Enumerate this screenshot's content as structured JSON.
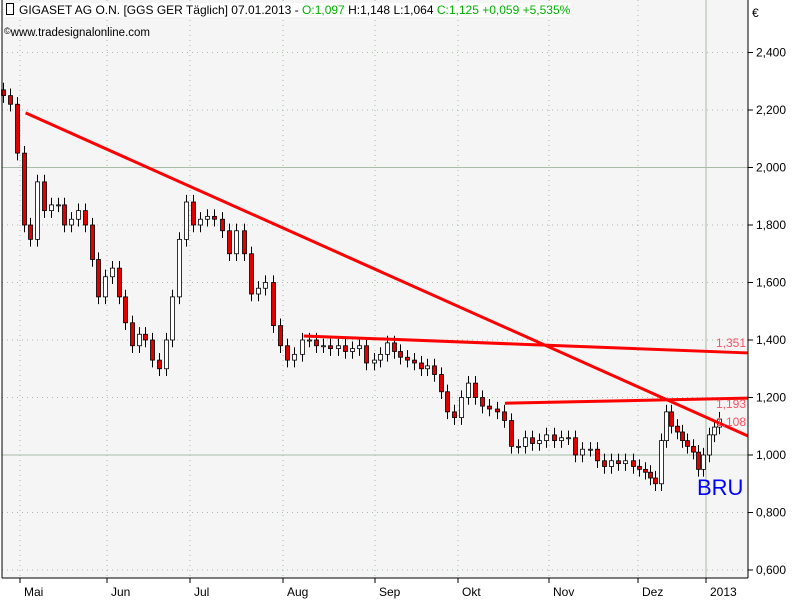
{
  "header": {
    "symbol": "GIGASET AG O.N. [GGS GER  Täglich] 07.01.2013 -",
    "open": "O:1,097",
    "high": "H:1,148",
    "low": "L:1,064",
    "close_change": "C:1,125 +0,059 +5,535%",
    "copyright": "©",
    "source": "www.tradesignalonline.com",
    "icon": "candlestick-icon"
  },
  "chart_data": {
    "type": "candlestick",
    "currency_label": "€",
    "ylim": [
      0.6,
      2.5
    ],
    "y_ticks": [
      "0,600",
      "0,800",
      "1,000",
      "1,200",
      "1,400",
      "1,600",
      "1,800",
      "2,000",
      "2,200",
      "2,400"
    ],
    "y_tick_values": [
      0.6,
      0.8,
      1.0,
      1.2,
      1.4,
      1.6,
      1.8,
      2.0,
      2.2,
      2.4
    ],
    "x_ticks": [
      {
        "label": "Mai",
        "date": "2012-05-01"
      },
      {
        "label": "Jun",
        "date": "2012-06-01"
      },
      {
        "label": "Jul",
        "date": "2012-07-01"
      },
      {
        "label": "Aug",
        "date": "2012-08-01"
      },
      {
        "label": "Sep",
        "date": "2012-09-01"
      },
      {
        "label": "Okt",
        "date": "2012-10-01"
      },
      {
        "label": "Nov",
        "date": "2012-11-01"
      },
      {
        "label": "Dez",
        "date": "2012-12-01"
      },
      {
        "label": "2013",
        "date": "2013-01-01"
      }
    ],
    "first_date": "2012-04-25",
    "last_date": "2013-01-07",
    "close": [
      2.25,
      2.22,
      2.05,
      1.8,
      1.75,
      1.95,
      1.85,
      1.87,
      1.87,
      1.8,
      1.82,
      1.85,
      1.8,
      1.68,
      1.55,
      1.62,
      1.65,
      1.55,
      1.46,
      1.38,
      1.42,
      1.4,
      1.33,
      1.3,
      1.4,
      1.55,
      1.75,
      1.88,
      1.8,
      1.82,
      1.83,
      1.82,
      1.78,
      1.7,
      1.78,
      1.7,
      1.56,
      1.58,
      1.6,
      1.45,
      1.38,
      1.33,
      1.35,
      1.4,
      1.4,
      1.38,
      1.38,
      1.37,
      1.38,
      1.36,
      1.37,
      1.38,
      1.32,
      1.33,
      1.35,
      1.39,
      1.36,
      1.34,
      1.33,
      1.32,
      1.3,
      1.31,
      1.28,
      1.22,
      1.15,
      1.13,
      1.2,
      1.25,
      1.2,
      1.17,
      1.16,
      1.15,
      1.12,
      1.03,
      1.03,
      1.06,
      1.04,
      1.05,
      1.07,
      1.05,
      1.06,
      1.06,
      1.0,
      1.02,
      1.02,
      0.98,
      0.96,
      0.98,
      0.97,
      0.98,
      0.96,
      0.95,
      0.94,
      0.92,
      0.9,
      1.05,
      1.15,
      1.1,
      1.08,
      1.05,
      1.03,
      1.01,
      0.95,
      1.0,
      1.07,
      1.097,
      1.125
    ],
    "trendlines": [
      {
        "start": {
          "date": "2012-05-03",
          "value": 2.19
        },
        "end": {
          "date": "2013-01-10",
          "value": 1.066
        },
        "label": "1,108"
      },
      {
        "start": {
          "date": "2012-08-08",
          "value": 1.414
        },
        "end": {
          "date": "2013-01-10",
          "value": 1.355
        },
        "label": "1,351"
      },
      {
        "start": {
          "date": "2012-10-17",
          "value": 1.18
        },
        "end": {
          "date": "2013-01-10",
          "value": 1.198
        },
        "label": "1,193"
      }
    ],
    "annotation": "BRU",
    "colors": {
      "up": "#ffffff",
      "down": "#e00000",
      "trendline": "#ff0000",
      "annotation": "#0000ff",
      "background": "#f5f5f5",
      "grid": "#a8bca8"
    },
    "grid": true
  }
}
